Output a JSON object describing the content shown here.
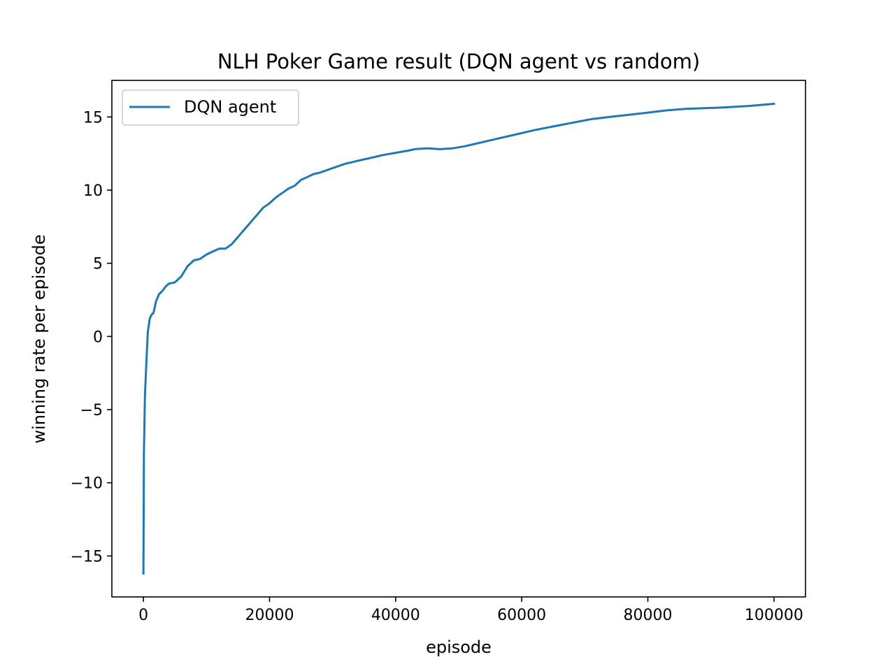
{
  "chart_data": {
    "type": "line",
    "title": "NLH Poker Game result (DQN agent vs random)",
    "xlabel": "episode",
    "ylabel": "winning rate per episode",
    "xlim": [
      -5000,
      105000
    ],
    "ylim": [
      -17.8,
      17.5
    ],
    "xticks": [
      0,
      20000,
      40000,
      60000,
      80000,
      100000
    ],
    "xtick_labels": [
      "0",
      "20000",
      "40000",
      "60000",
      "80000",
      "100000"
    ],
    "yticks": [
      -15,
      -10,
      -5,
      0,
      5,
      10,
      15
    ],
    "ytick_labels": [
      "−15",
      "−10",
      "−5",
      "0",
      "5",
      "10",
      "15"
    ],
    "grid": false,
    "legend": {
      "position": "upper-left",
      "entries": [
        "DQN agent"
      ]
    },
    "series": [
      {
        "name": "DQN agent",
        "color": "#1f77b4",
        "points": [
          [
            0,
            -16.2
          ],
          [
            40,
            -12.0
          ],
          [
            80,
            -8.0
          ],
          [
            150,
            -6.5
          ],
          [
            250,
            -4.0
          ],
          [
            350,
            -3.0
          ],
          [
            500,
            -1.5
          ],
          [
            700,
            0.3
          ],
          [
            1000,
            1.2
          ],
          [
            1300,
            1.5
          ],
          [
            1600,
            1.6
          ],
          [
            2000,
            2.4
          ],
          [
            2500,
            2.9
          ],
          [
            3000,
            3.1
          ],
          [
            3500,
            3.4
          ],
          [
            4000,
            3.6
          ],
          [
            5000,
            3.7
          ],
          [
            6000,
            4.1
          ],
          [
            7000,
            4.8
          ],
          [
            8000,
            5.2
          ],
          [
            9000,
            5.3
          ],
          [
            10000,
            5.6
          ],
          [
            11000,
            5.8
          ],
          [
            12000,
            6.0
          ],
          [
            13000,
            6.0
          ],
          [
            14000,
            6.3
          ],
          [
            15000,
            6.8
          ],
          [
            16000,
            7.3
          ],
          [
            17000,
            7.8
          ],
          [
            18000,
            8.3
          ],
          [
            19000,
            8.8
          ],
          [
            20000,
            9.1
          ],
          [
            21000,
            9.5
          ],
          [
            22000,
            9.8
          ],
          [
            23000,
            10.1
          ],
          [
            24000,
            10.3
          ],
          [
            25000,
            10.7
          ],
          [
            26000,
            10.9
          ],
          [
            27000,
            11.1
          ],
          [
            28000,
            11.2
          ],
          [
            30000,
            11.5
          ],
          [
            32000,
            11.8
          ],
          [
            34000,
            12.0
          ],
          [
            36000,
            12.2
          ],
          [
            38000,
            12.4
          ],
          [
            40000,
            12.55
          ],
          [
            42000,
            12.7
          ],
          [
            43000,
            12.8
          ],
          [
            45000,
            12.85
          ],
          [
            47000,
            12.8
          ],
          [
            49000,
            12.85
          ],
          [
            51000,
            13.0
          ],
          [
            53000,
            13.2
          ],
          [
            56000,
            13.5
          ],
          [
            59000,
            13.8
          ],
          [
            62000,
            14.1
          ],
          [
            65000,
            14.35
          ],
          [
            68000,
            14.6
          ],
          [
            71000,
            14.85
          ],
          [
            74000,
            15.0
          ],
          [
            77000,
            15.15
          ],
          [
            80000,
            15.3
          ],
          [
            83000,
            15.45
          ],
          [
            86000,
            15.55
          ],
          [
            89000,
            15.6
          ],
          [
            92000,
            15.65
          ],
          [
            96000,
            15.75
          ],
          [
            100000,
            15.9
          ]
        ]
      }
    ]
  }
}
